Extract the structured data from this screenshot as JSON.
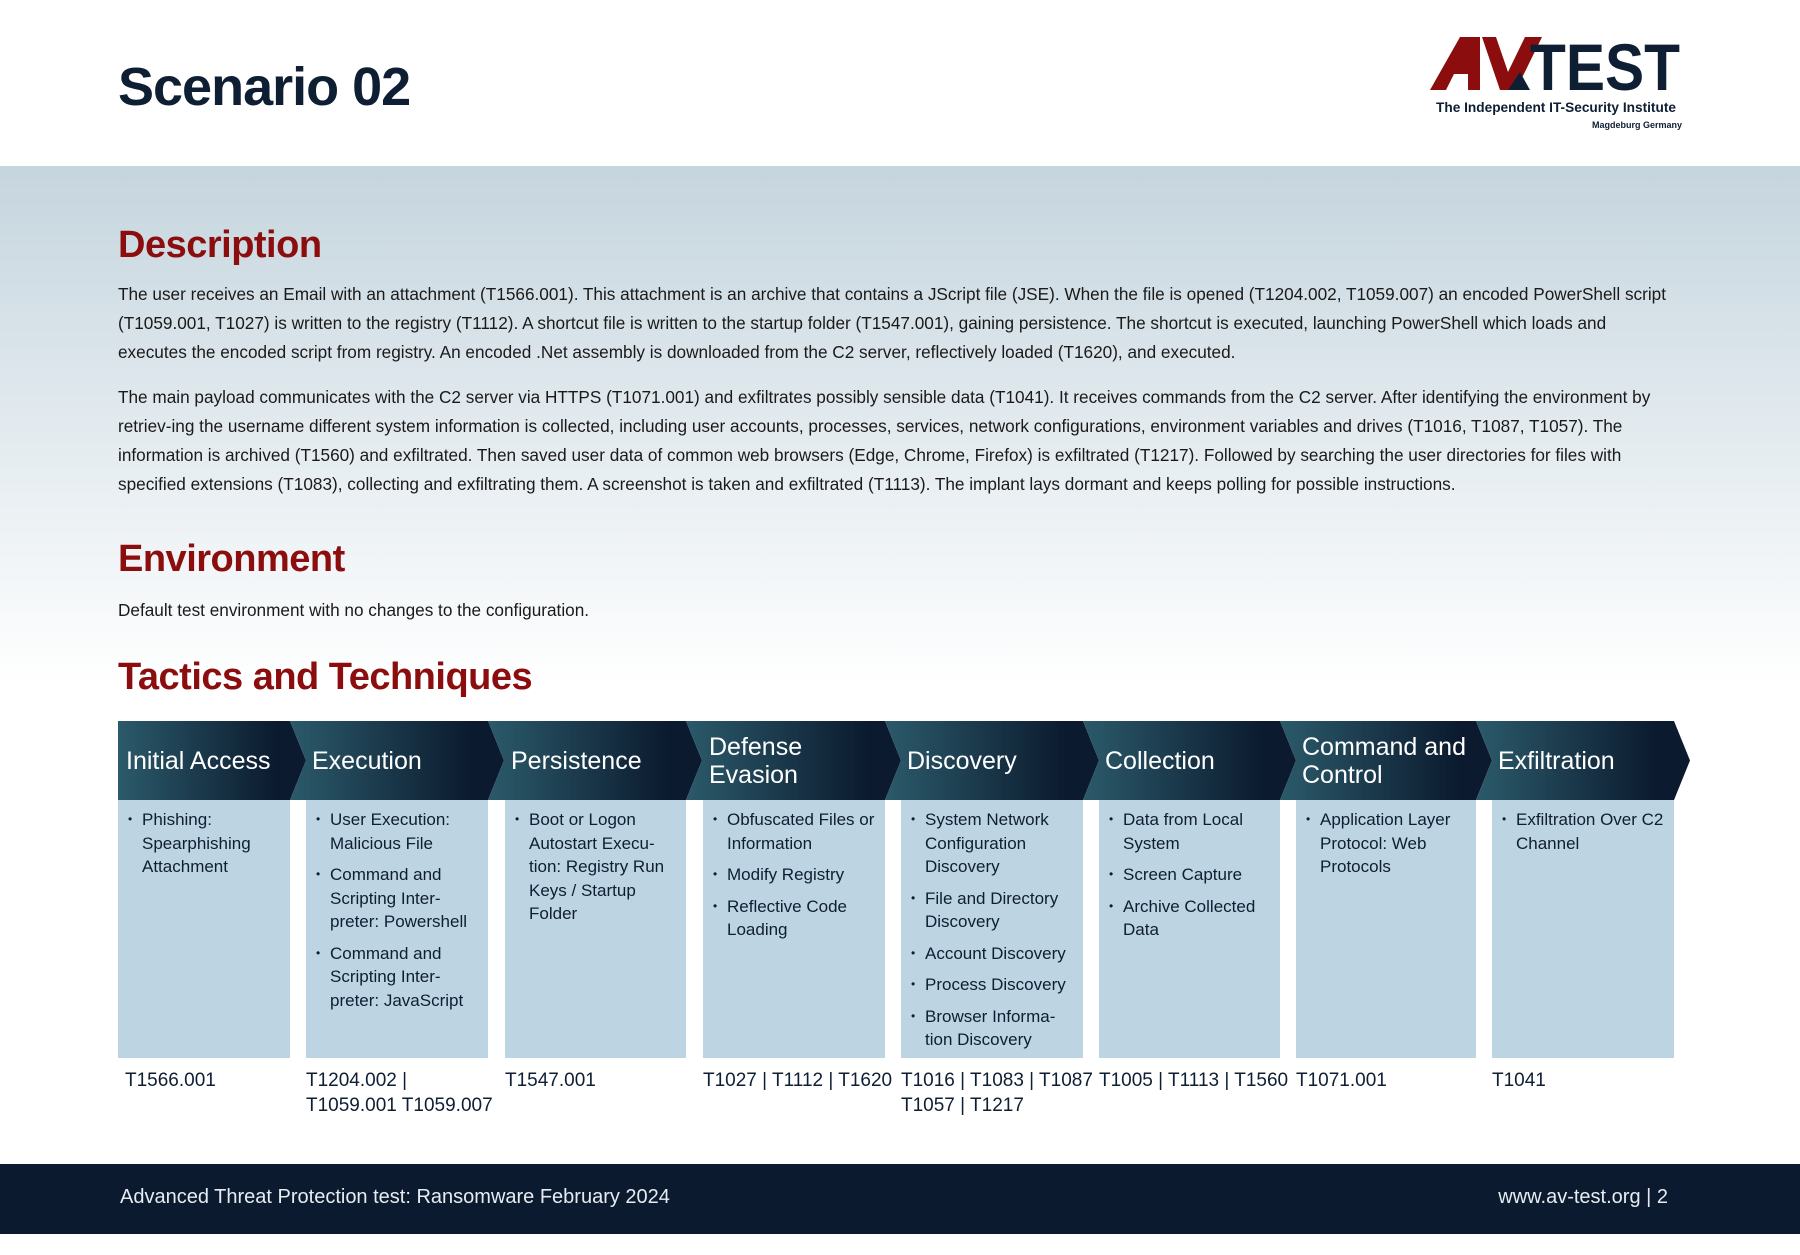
{
  "title": "Scenario 02",
  "logo": {
    "text": "AV-TEST",
    "tagline": "The Independent IT-Security Institute",
    "location": "Magdeburg Germany",
    "colors": {
      "red": "#8b0d0d",
      "navy": "#0e1e33"
    }
  },
  "description": {
    "heading": "Description",
    "paragraphs": [
      "The user receives an Email with an attachment (T1566.001). This attachment is an archive that contains a JScript file (JSE). When the file is opened (T1204.002, T1059.007) an encoded PowerShell script (T1059.001, T1027) is written to the registry (T1112). A shortcut file is written to the startup folder (T1547.001), gaining persistence. The shortcut is executed, launching PowerShell which loads and executes the encoded script from registry. An encoded .Net assembly is downloaded from the C2 server, reflectively loaded (T1620), and executed.",
      "The main payload communicates with the C2 server via HTTPS (T1071.001) and exfiltrates possibly sensible data (T1041). It receives commands from the C2 server. After identifying the environment by retriev-ing the username different system information is collected, including user accounts, processes, services, network configurations, environment variables and drives (T1016, T1087, T1057). The information is archived (T1560) and exfiltrated. Then saved user data of common web browsers (Edge, Chrome, Firefox) is exfiltrated (T1217). Followed by searching the user directories for files with specified extensions (T1083), collecting and exfiltrating them. A screenshot is taken and exfiltrated (T1113). The implant lays dormant and keeps polling for possible instructions."
    ]
  },
  "environment": {
    "heading": "Environment",
    "text": "Default test environment with no changes to the configuration."
  },
  "tactics": {
    "heading": "Tactics and Techniques",
    "columns": [
      {
        "name": "Initial Access",
        "items": [
          "Phishing: Spearphishing Attachment"
        ],
        "codes": "T1566.001"
      },
      {
        "name": "Execution",
        "items": [
          "User Execution: Malicious File",
          "Command and Scripting Inter-preter: Powershell",
          "Command and Scripting Inter-preter: JavaScript"
        ],
        "codes": "T1204.002 | T1059.001 T1059.007"
      },
      {
        "name": "Persistence",
        "items": [
          "Boot or Logon Autostart Execu-tion: Registry Run Keys / Startup Folder"
        ],
        "codes": "T1547.001"
      },
      {
        "name": "Defense Evasion",
        "items": [
          "Obfuscated Files or Information",
          "Modify Registry",
          "Reflective Code Loading"
        ],
        "codes": "T1027 | T1112 | T1620"
      },
      {
        "name": "Discovery",
        "items": [
          "System Network Configuration Discovery",
          "File and Directory Discovery",
          "Account Discovery",
          "Process Discovery",
          "Browser Informa-tion Discovery"
        ],
        "codes": "T1016 | T1083 | T1087 T1057 | T1217"
      },
      {
        "name": "Collection",
        "items": [
          "Data from Local System",
          "Screen Capture",
          "Archive Collected Data"
        ],
        "codes": "T1005 | T1113 | T1560"
      },
      {
        "name": "Command and Control",
        "items": [
          "Application Layer Protocol: Web Protocols"
        ],
        "codes": "T1071.001"
      },
      {
        "name": "Exfiltration",
        "items": [
          "Exfiltration Over C2 Channel"
        ],
        "codes": "T1041"
      }
    ]
  },
  "footer": {
    "left": "Advanced Threat Protection test: Ransomware February 2024",
    "right": "www.av-test.org | 2"
  }
}
